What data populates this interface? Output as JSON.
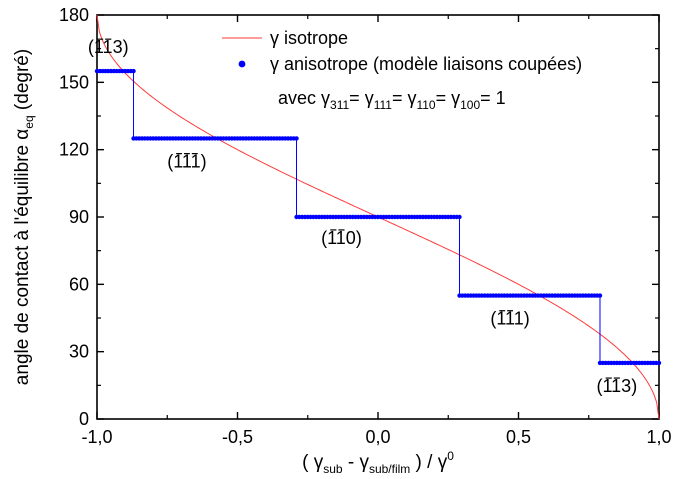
{
  "chart_data": {
    "type": "line",
    "title": "",
    "xlabel": {
      "open": "( ",
      "gamma1": "γ",
      "sub1": "sub",
      "minus": " - ",
      "gamma2": "γ",
      "sub2": "sub/film",
      "mid": " ) / ",
      "gamma0": "γ",
      "sup0": "0"
    },
    "ylabel": {
      "main": "angle de contact à l'équilibre ",
      "alpha": "α",
      "sub": "eq",
      "unit": " (degré)"
    },
    "xlim": [
      -1.0,
      1.0
    ],
    "ylim": [
      0,
      180
    ],
    "xticks": [
      -1.0,
      -0.5,
      0.0,
      0.5,
      1.0
    ],
    "xtick_labels": [
      "-1,0",
      "-0,5",
      "0,0",
      "0,5",
      "1,0"
    ],
    "yticks": [
      0,
      30,
      60,
      90,
      120,
      150,
      180
    ],
    "ytick_labels": [
      "0",
      "30",
      "60",
      "90",
      "120",
      "150",
      "180"
    ],
    "grid": false,
    "legend_position": "top-right",
    "series": [
      {
        "name": "γ isotrope",
        "style": "line",
        "color": "#ff3b3b",
        "formula": "arccos(x)"
      },
      {
        "name": "γ anisotrope (modèle liaisons coupées)",
        "style": "markers",
        "color": "#0000ff",
        "segments": [
          {
            "x": [
              -1.0,
              -0.87
            ],
            "y": 155
          },
          {
            "x": [
              -0.87,
              -0.29
            ],
            "y": 125
          },
          {
            "x": [
              -0.29,
              0.29
            ],
            "y": 90
          },
          {
            "x": [
              0.29,
              0.79
            ],
            "y": 55
          },
          {
            "x": [
              0.79,
              1.0
            ],
            "y": 25
          }
        ]
      }
    ],
    "note": {
      "prefix": "avec ",
      "parts": [
        {
          "g": "γ",
          "s": "311",
          "t": "= "
        },
        {
          "g": "γ",
          "s": "111",
          "t": "= "
        },
        {
          "g": "γ",
          "s": "110",
          "t": "= "
        },
        {
          "g": "γ",
          "s": "100",
          "t": "= 1"
        }
      ]
    },
    "annotations": [
      {
        "text": "(113)",
        "overline_digits": [
          0,
          1
        ],
        "x": -0.96,
        "y": 163
      },
      {
        "text": "(111)",
        "overline_digits": [
          0,
          1,
          2
        ],
        "x": -0.68,
        "y": 112
      },
      {
        "text": "(110)",
        "overline_digits": [
          0,
          1
        ],
        "x": -0.13,
        "y": 78
      },
      {
        "text": "(111)",
        "overline_digits": [
          0,
          1
        ],
        "x": 0.47,
        "y": 42
      },
      {
        "text": "(113)",
        "overline_digits": [
          0,
          1
        ],
        "x": 0.85,
        "y": 12
      }
    ]
  }
}
